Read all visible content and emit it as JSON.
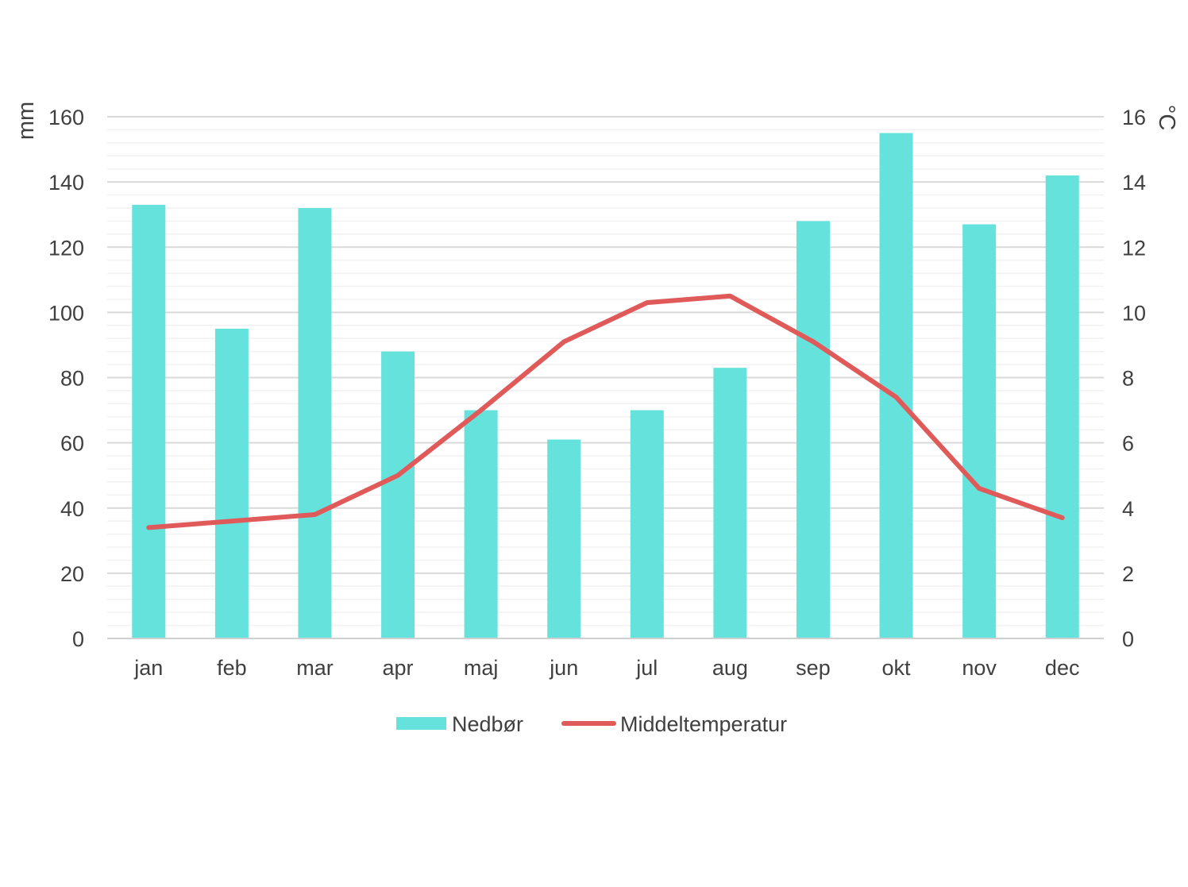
{
  "chart_data": {
    "type": "bar",
    "categories": [
      "jan",
      "feb",
      "mar",
      "apr",
      "maj",
      "jun",
      "jul",
      "aug",
      "sep",
      "okt",
      "nov",
      "dec"
    ],
    "series": [
      {
        "name": "Nedbør",
        "type": "bar",
        "axis": "left",
        "color": "#66e2dc",
        "values": [
          133,
          95,
          132,
          88,
          70,
          61,
          70,
          83,
          128,
          155,
          127,
          142
        ]
      },
      {
        "name": "Middeltemperatur",
        "type": "line",
        "axis": "right",
        "color": "#e05a5a",
        "values": [
          3.4,
          3.6,
          3.8,
          5.0,
          7.0,
          9.1,
          10.3,
          10.5,
          9.1,
          7.4,
          4.6,
          3.7
        ]
      }
    ],
    "ylabel": "mm",
    "y2label": "°C",
    "ylim": [
      0,
      160
    ],
    "y2lim": [
      0,
      16
    ],
    "yticks": [
      0,
      20,
      40,
      60,
      80,
      100,
      120,
      140,
      160
    ],
    "y2ticks": [
      0,
      2,
      4,
      6,
      8,
      10,
      12,
      14,
      16
    ],
    "grid": true,
    "legend_position": "bottom-center"
  }
}
